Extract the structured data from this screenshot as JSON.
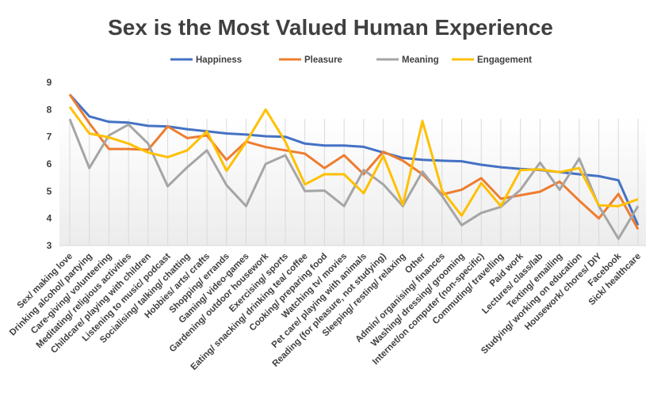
{
  "chart_data": {
    "type": "line",
    "title": "Sex is the Most Valued Human Experience",
    "xlabel": "",
    "ylabel": "",
    "ylim": [
      3,
      9
    ],
    "yticks": [
      3,
      4,
      5,
      6,
      7,
      8,
      9
    ],
    "grid": "vertical lines at each category",
    "legend_position": "top",
    "categories": [
      "Sex/ making love",
      "Drinking alcohol/ partying",
      "Care-giving/ volunteering",
      "Meditating/ religious activities",
      "Childcare/ playing with children",
      "Listening to music/ podcast",
      "Socialising/ talking/ chatting",
      "Hobbies/ arts/ crafts",
      "Shopping/ errands",
      "Gaming/ video-games",
      "Gardening/ outdoor housework",
      "Exercising/ sports",
      "Eating/ snacking/ drinking tea/ coffee",
      "Cooking/ preparing food",
      "Watching tv/ movies",
      "Pet care/ playing with animals",
      "Reading (for pleasure, not studying)",
      "Sleeping/ resting/ relaxing",
      "Other",
      "Admin/ organising/ finances",
      "Washing/ dressing/ grooming",
      "Internet/on computer (non-specific)",
      "Commuting/ travelling",
      "Paid work",
      "Lectures/ class/lab",
      "Texting/ emailing",
      "Studying/ working on education",
      "Housework/ chores/ DIY",
      "Facebook",
      "Sick/ healthcare"
    ],
    "series": [
      {
        "name": "Happiness",
        "color": "#4472C4",
        "values": [
          8.55,
          7.75,
          7.55,
          7.52,
          7.4,
          7.38,
          7.28,
          7.2,
          7.12,
          7.08,
          7.02,
          7.0,
          6.75,
          6.68,
          6.68,
          6.63,
          6.42,
          6.22,
          6.15,
          6.12,
          6.1,
          5.97,
          5.88,
          5.82,
          5.78,
          5.7,
          5.62,
          5.55,
          5.4,
          3.75
        ]
      },
      {
        "name": "Pleasure",
        "color": "#ED7D31",
        "values": [
          8.55,
          7.5,
          6.55,
          6.55,
          6.52,
          7.38,
          6.95,
          7.05,
          6.15,
          6.82,
          6.62,
          6.5,
          6.38,
          5.85,
          6.32,
          5.62,
          6.45,
          6.12,
          5.62,
          4.88,
          5.05,
          5.48,
          4.72,
          4.85,
          4.98,
          5.35,
          4.65,
          4.0,
          4.9,
          3.6
        ]
      },
      {
        "name": "Meaning",
        "color": "#A5A5A5",
        "values": [
          7.65,
          5.85,
          7.05,
          7.45,
          6.75,
          5.18,
          5.88,
          6.5,
          5.22,
          4.45,
          6.0,
          6.32,
          5.0,
          5.02,
          4.45,
          5.78,
          5.25,
          4.45,
          5.72,
          4.82,
          3.75,
          4.2,
          4.42,
          5.05,
          6.05,
          5.05,
          6.2,
          4.45,
          3.25,
          4.45
        ]
      },
      {
        "name": "Engagement",
        "color": "#FFC000",
        "values": [
          8.1,
          7.12,
          6.98,
          6.75,
          6.42,
          6.25,
          6.5,
          7.2,
          5.75,
          6.8,
          8.0,
          6.82,
          5.25,
          5.62,
          5.62,
          4.92,
          6.3,
          4.5,
          7.58,
          5.02,
          4.1,
          5.3,
          4.45,
          5.78,
          5.8,
          5.7,
          5.85,
          4.48,
          4.45,
          4.7
        ]
      }
    ]
  }
}
